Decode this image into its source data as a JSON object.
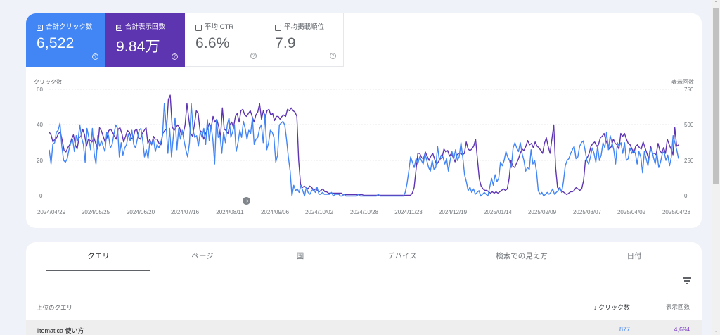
{
  "metrics": [
    {
      "label": "合計クリック数",
      "value": "6,522",
      "checked": true
    },
    {
      "label": "合計表示回数",
      "value": "9.84万",
      "checked": true
    },
    {
      "label": "平均 CTR",
      "value": "6.6%",
      "checked": false
    },
    {
      "label": "平均掲載順位",
      "value": "7.9",
      "checked": false
    }
  ],
  "icons": {
    "checkbox_checked": "☑",
    "help": "?",
    "annotation_arrow": "➜",
    "sort_down": "↓",
    "scroll_up": "⌃",
    "scroll_down": "⌄"
  },
  "colors": {
    "clicks": "#4285f4",
    "impressions": "#5e35b1",
    "background": "#eff2f9"
  },
  "chart_data": {
    "type": "line",
    "title": "",
    "ylabel_left": "クリック数",
    "ylabel_right": "表示回数",
    "yticks_left": [
      "60",
      "40",
      "20",
      "0"
    ],
    "yticks_right": [
      "750",
      "500",
      "250",
      "0"
    ],
    "ylim_left": [
      0,
      60
    ],
    "ylim_right": [
      0,
      750
    ],
    "x_tick_labels": [
      "2024/04/29",
      "2024/05/25",
      "2024/06/20",
      "2024/07/16",
      "2024/08/11",
      "2024/09/06",
      "2024/10/02",
      "2024/10/28",
      "2024/11/23",
      "2024/12/19",
      "2025/01/14",
      "2025/02/09",
      "2025/03/07",
      "2025/04/02",
      "2025/04/28"
    ],
    "x_range": [
      "2024/04/29",
      "2025/04/28"
    ],
    "grid": true,
    "series": [
      {
        "name": "クリック数",
        "axis": "left",
        "color": "#4285f4",
        "values": [
          26,
          18,
          29,
          30,
          36,
          37,
          41,
          28,
          20,
          19,
          21,
          26,
          30,
          32,
          25,
          34,
          31,
          40,
          33,
          29,
          19,
          38,
          33,
          26,
          38,
          24,
          18,
          34,
          28,
          31,
          28,
          25,
          36,
          34,
          27,
          29,
          35,
          40,
          38,
          22,
          30,
          23,
          27,
          29,
          35,
          31,
          37,
          29,
          27,
          32,
          37,
          38,
          31,
          22,
          26,
          21,
          31,
          29,
          32,
          25,
          29,
          27,
          30,
          34,
          52,
          40,
          24,
          38,
          22,
          33,
          44,
          26,
          38,
          32,
          37,
          31,
          26,
          22,
          30,
          52,
          37,
          33,
          34,
          28,
          36,
          33,
          38,
          29,
          43,
          31,
          40,
          32,
          18,
          43,
          33,
          34,
          24,
          36,
          30,
          40,
          44,
          33,
          36,
          40,
          25,
          30,
          37,
          33,
          42,
          38,
          32,
          37,
          35,
          44,
          29,
          32,
          33,
          38,
          40,
          30,
          46,
          26,
          30,
          37,
          36,
          33,
          19,
          23,
          40,
          41,
          42,
          40,
          32,
          22,
          14,
          0,
          6,
          3,
          4,
          2,
          6,
          3,
          0,
          5,
          2,
          1,
          3,
          4,
          2,
          5,
          1,
          1,
          2,
          1,
          1,
          1,
          1,
          2,
          0,
          1,
          1,
          1,
          0,
          0,
          1,
          0,
          0,
          0,
          0,
          0,
          0,
          0,
          1,
          0,
          0,
          0,
          0,
          0,
          0,
          0,
          0,
          0,
          0,
          1,
          0,
          0,
          0,
          0,
          0,
          0,
          0,
          0,
          0,
          0,
          0,
          0,
          0,
          0,
          2,
          7,
          14,
          22,
          19,
          16,
          21,
          18,
          22,
          20,
          18,
          24,
          20,
          16,
          14,
          20,
          15,
          16,
          28,
          20,
          23,
          22,
          18,
          21,
          14,
          20,
          25,
          21,
          26,
          20,
          22,
          30,
          22,
          12,
          8,
          3,
          5,
          2,
          4,
          1,
          2,
          3,
          0,
          1,
          2,
          1,
          0,
          5,
          10,
          6,
          12,
          8,
          10,
          19,
          17,
          20,
          25,
          22,
          20,
          16,
          27,
          30,
          27,
          25,
          30,
          24,
          20,
          14,
          16,
          15,
          26,
          18,
          20,
          14,
          3,
          1,
          2,
          0,
          1,
          2,
          1,
          2,
          4,
          1,
          2,
          3,
          5,
          2,
          8,
          17,
          20,
          21,
          24,
          26,
          28,
          21,
          22,
          28,
          30,
          31,
          26,
          20,
          18,
          22,
          27,
          24,
          19,
          28,
          20,
          23,
          30,
          27,
          36,
          26,
          34,
          30,
          26,
          18,
          30,
          28,
          30,
          24,
          30,
          20,
          21,
          27,
          24,
          26,
          24,
          18,
          25,
          22,
          13,
          25,
          21,
          17,
          24,
          27,
          22,
          18,
          24,
          16,
          19,
          24,
          25,
          20,
          23,
          17,
          22,
          34,
          30,
          26,
          21
        ]
      },
      {
        "name": "表示回数",
        "axis": "right",
        "color": "#5e35b1",
        "values": [
          450,
          430,
          380,
          400,
          410,
          440,
          450,
          390,
          320,
          310,
          340,
          360,
          400,
          430,
          360,
          330,
          410,
          420,
          470,
          430,
          350,
          400,
          390,
          380,
          410,
          370,
          330,
          480,
          460,
          420,
          380,
          410,
          460,
          470,
          450,
          420,
          400,
          470,
          480,
          440,
          380,
          420,
          460,
          450,
          410,
          400,
          460,
          470,
          410,
          400,
          440,
          460,
          480,
          370,
          400,
          360,
          420,
          400,
          400,
          370,
          360,
          440,
          460,
          470,
          680,
          710,
          490,
          460,
          480,
          500,
          480,
          430,
          440,
          500,
          650,
          540,
          440,
          420,
          500,
          600,
          580,
          460,
          450,
          400,
          440,
          470,
          510,
          480,
          560,
          520,
          540,
          490,
          410,
          620,
          470,
          460,
          440,
          500,
          520,
          480,
          560,
          580,
          520,
          600,
          610,
          570,
          560,
          580,
          600,
          560,
          520,
          570,
          590,
          650,
          540,
          600,
          550,
          600,
          610,
          570,
          580,
          530,
          560,
          560,
          540,
          560,
          570,
          560,
          610,
          600,
          620,
          600,
          590,
          560,
          250,
          80,
          60,
          70,
          60,
          50,
          70,
          60,
          40,
          50,
          40,
          30,
          40,
          50,
          30,
          30,
          20,
          20,
          20,
          20,
          20,
          20,
          20,
          20,
          10,
          10,
          10,
          10,
          10,
          10,
          10,
          10,
          10,
          10,
          10,
          5,
          5,
          5,
          5,
          5,
          5,
          5,
          5,
          5,
          5,
          5,
          5,
          5,
          5,
          5,
          5,
          5,
          5,
          5,
          5,
          5,
          5,
          5,
          5,
          5,
          5,
          20,
          60,
          180,
          300,
          300,
          270,
          260,
          310,
          280,
          250,
          280,
          300,
          260,
          220,
          240,
          260,
          270,
          330,
          310,
          320,
          280,
          300,
          270,
          240,
          290,
          300,
          300,
          290,
          300,
          380,
          330,
          320,
          330,
          350,
          400,
          260,
          120,
          70,
          50,
          40,
          40,
          30,
          20,
          30,
          20,
          30,
          20,
          30,
          40,
          50,
          40,
          50,
          120,
          250,
          210,
          200,
          230,
          260,
          300,
          330,
          320,
          350,
          390,
          360,
          370,
          340,
          380,
          350,
          340,
          320,
          300,
          370,
          410,
          350,
          300,
          400,
          500,
          200,
          60,
          50,
          40,
          30,
          20,
          10,
          20,
          30,
          30,
          40,
          60,
          50,
          40,
          50,
          110,
          250,
          270,
          300,
          350,
          370,
          380,
          350,
          360,
          410,
          420,
          440,
          390,
          360,
          330,
          350,
          400,
          370,
          360,
          330,
          440,
          420,
          440,
          400,
          370,
          360,
          330,
          300,
          350,
          360,
          340,
          330,
          380,
          340,
          300,
          260,
          350,
          300,
          300,
          290,
          370,
          320,
          300,
          340,
          300,
          400,
          360,
          330,
          290,
          480,
          350,
          360
        ]
      }
    ]
  },
  "tabs": [
    {
      "label": "クエリ",
      "active": true
    },
    {
      "label": "ページ",
      "active": false
    },
    {
      "label": "国",
      "active": false
    },
    {
      "label": "デバイス",
      "active": false
    },
    {
      "label": "検索での見え方",
      "active": false
    },
    {
      "label": "日付",
      "active": false
    }
  ],
  "table": {
    "header": {
      "query": "上位のクエリ",
      "clicks": "クリック数",
      "impressions": "表示回数"
    },
    "rows": [
      {
        "query": "litematica 使い方",
        "clicks": "877",
        "impressions": "4,694"
      }
    ]
  }
}
